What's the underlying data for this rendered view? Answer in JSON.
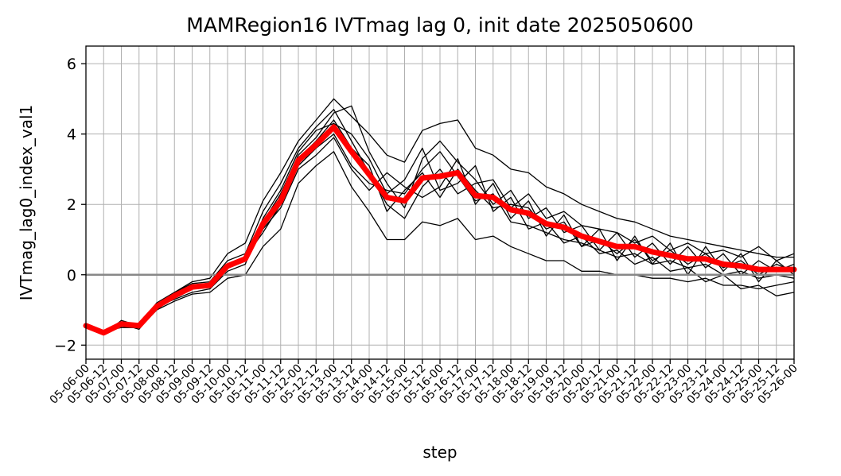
{
  "chart_data": {
    "type": "line",
    "title": "MAMRegion16 IVTmag lag 0, init date 2025050600",
    "xlabel": "step",
    "ylabel": "IVTmag_lag0_index_val1",
    "ylim": [
      -2.4,
      6.5
    ],
    "yticks": [
      -2,
      0,
      2,
      4,
      6
    ],
    "ytick_labels": [
      "−2",
      "0",
      "2",
      "4",
      "6"
    ],
    "grid": true,
    "zero_line_color": "#888888",
    "member_color": "#000000",
    "mean_color": "#ff0000",
    "categories": [
      "05-06-00",
      "05-06-12",
      "05-07-00",
      "05-07-12",
      "05-08-00",
      "05-08-12",
      "05-09-00",
      "05-09-12",
      "05-10-00",
      "05-10-12",
      "05-11-00",
      "05-11-12",
      "05-12-00",
      "05-12-12",
      "05-13-00",
      "05-13-12",
      "05-14-00",
      "05-14-12",
      "05-15-00",
      "05-15-12",
      "05-16-00",
      "05-16-12",
      "05-17-00",
      "05-17-12",
      "05-18-00",
      "05-18-12",
      "05-19-00",
      "05-19-12",
      "05-20-00",
      "05-20-12",
      "05-21-00",
      "05-21-12",
      "05-22-00",
      "05-22-12",
      "05-23-00",
      "05-23-12",
      "05-24-00",
      "05-24-12",
      "05-25-00",
      "05-25-12",
      "05-26-00"
    ],
    "ensemble_mean": [
      -1.45,
      -1.65,
      -1.4,
      -1.45,
      -0.9,
      -0.6,
      -0.35,
      -0.3,
      0.25,
      0.45,
      1.45,
      2.1,
      3.25,
      3.7,
      4.2,
      3.5,
      2.85,
      2.2,
      2.1,
      2.75,
      2.8,
      2.9,
      2.25,
      2.2,
      1.85,
      1.75,
      1.45,
      1.35,
      1.1,
      0.95,
      0.8,
      0.8,
      0.65,
      0.55,
      0.45,
      0.45,
      0.3,
      0.25,
      0.15,
      0.15,
      0.15
    ],
    "series": [
      {
        "values": [
          -1.45,
          -1.65,
          -1.4,
          -1.45,
          -0.9,
          -0.6,
          -0.35,
          -0.3,
          0.25,
          0.45,
          1.45,
          2.1,
          3.25,
          3.7,
          4.2,
          3.5,
          2.85,
          2.2,
          2.1,
          2.75,
          2.8,
          2.9,
          2.25,
          2.2,
          1.85,
          1.75,
          1.45,
          1.35,
          1.1,
          0.95,
          0.8,
          0.8,
          0.65,
          0.55,
          0.45,
          0.45,
          0.3,
          0.25,
          0.15,
          0.15,
          0.15
        ]
      },
      {
        "values": [
          -1.45,
          -1.7,
          -1.3,
          -1.45,
          -0.8,
          -0.5,
          -0.2,
          -0.1,
          0.6,
          0.9,
          2.1,
          2.9,
          3.8,
          4.4,
          5.0,
          4.5,
          4.0,
          3.4,
          3.2,
          4.1,
          4.3,
          4.4,
          3.6,
          3.4,
          3.0,
          2.9,
          2.5,
          2.3,
          2.0,
          1.8,
          1.6,
          1.5,
          1.3,
          1.1,
          1.0,
          0.9,
          0.8,
          0.7,
          0.6,
          0.5,
          0.5
        ]
      },
      {
        "values": [
          -1.45,
          -1.6,
          -1.5,
          -1.5,
          -1.0,
          -0.75,
          -0.55,
          -0.5,
          -0.1,
          0.0,
          0.8,
          1.3,
          2.6,
          3.1,
          3.5,
          2.5,
          1.8,
          1.0,
          1.0,
          1.5,
          1.4,
          1.6,
          1.0,
          1.1,
          0.8,
          0.6,
          0.4,
          0.4,
          0.1,
          0.1,
          0.0,
          0.0,
          -0.1,
          -0.1,
          -0.2,
          -0.1,
          -0.3,
          -0.3,
          -0.4,
          -0.3,
          -0.2
        ]
      },
      {
        "values": [
          -1.45,
          -1.65,
          -1.35,
          -1.5,
          -0.85,
          -0.65,
          -0.4,
          -0.35,
          0.2,
          0.5,
          1.5,
          2.3,
          3.4,
          3.9,
          4.6,
          4.8,
          3.5,
          2.6,
          1.9,
          3.3,
          3.8,
          3.2,
          2.7,
          2.0,
          2.4,
          1.6,
          1.9,
          1.2,
          1.4,
          0.7,
          1.2,
          0.5,
          0.9,
          0.3,
          0.8,
          0.2,
          0.6,
          0.0,
          0.4,
          0.1,
          0.3
        ]
      },
      {
        "values": [
          -1.45,
          -1.7,
          -1.45,
          -1.4,
          -0.95,
          -0.55,
          -0.3,
          -0.25,
          0.3,
          0.4,
          1.3,
          1.9,
          3.0,
          3.4,
          3.9,
          3.0,
          2.4,
          2.9,
          2.5,
          2.2,
          2.5,
          3.3,
          2.0,
          2.6,
          1.6,
          2.1,
          1.1,
          1.7,
          0.8,
          1.3,
          0.4,
          1.1,
          0.3,
          0.9,
          0.0,
          0.8,
          0.1,
          0.6,
          -0.2,
          0.4,
          0.0
        ]
      },
      {
        "values": [
          -1.45,
          -1.6,
          -1.4,
          -1.55,
          -0.9,
          -0.7,
          -0.5,
          -0.4,
          0.1,
          0.3,
          1.6,
          2.4,
          3.5,
          4.1,
          4.3,
          4.0,
          3.3,
          2.3,
          2.7,
          3.6,
          2.4,
          2.6,
          3.1,
          1.8,
          2.2,
          1.3,
          1.5,
          0.9,
          1.1,
          0.6,
          0.7,
          0.3,
          0.5,
          0.1,
          0.2,
          -0.2,
          0.0,
          -0.4,
          -0.3,
          -0.6,
          -0.5
        ]
      },
      {
        "values": [
          -1.45,
          -1.65,
          -1.35,
          -1.4,
          -0.8,
          -0.5,
          -0.25,
          -0.2,
          0.4,
          0.6,
          1.8,
          2.6,
          3.6,
          4.2,
          4.7,
          3.8,
          2.9,
          2.0,
          1.6,
          2.5,
          3.0,
          2.3,
          2.6,
          2.7,
          1.9,
          2.3,
          1.6,
          1.8,
          1.4,
          1.3,
          1.2,
          0.9,
          1.1,
          0.7,
          0.9,
          0.6,
          0.7,
          0.5,
          0.8,
          0.4,
          0.6
        ]
      },
      {
        "values": [
          -1.45,
          -1.7,
          -1.45,
          -1.5,
          -1.0,
          -0.6,
          -0.35,
          -0.3,
          0.2,
          0.5,
          1.2,
          2.0,
          3.1,
          3.6,
          4.0,
          3.1,
          2.6,
          2.4,
          2.3,
          3.0,
          3.5,
          2.8,
          2.1,
          2.3,
          1.5,
          1.4,
          1.2,
          1.0,
          0.9,
          0.7,
          0.5,
          0.6,
          0.3,
          0.4,
          0.2,
          0.3,
          0.0,
          0.1,
          -0.1,
          0.0,
          -0.1
        ]
      },
      {
        "values": [
          -1.45,
          -1.6,
          -1.4,
          -1.45,
          -0.85,
          -0.6,
          -0.4,
          -0.35,
          0.3,
          0.4,
          1.4,
          2.2,
          3.3,
          3.8,
          4.4,
          3.6,
          3.1,
          1.8,
          2.4,
          2.9,
          2.2,
          3.0,
          2.4,
          1.9,
          2.0,
          1.9,
          1.3,
          1.5,
          0.8,
          1.0,
          0.6,
          1.0,
          0.4,
          0.7,
          0.3,
          0.6,
          0.2,
          0.4,
          0.0,
          0.3,
          0.1
        ]
      }
    ]
  }
}
